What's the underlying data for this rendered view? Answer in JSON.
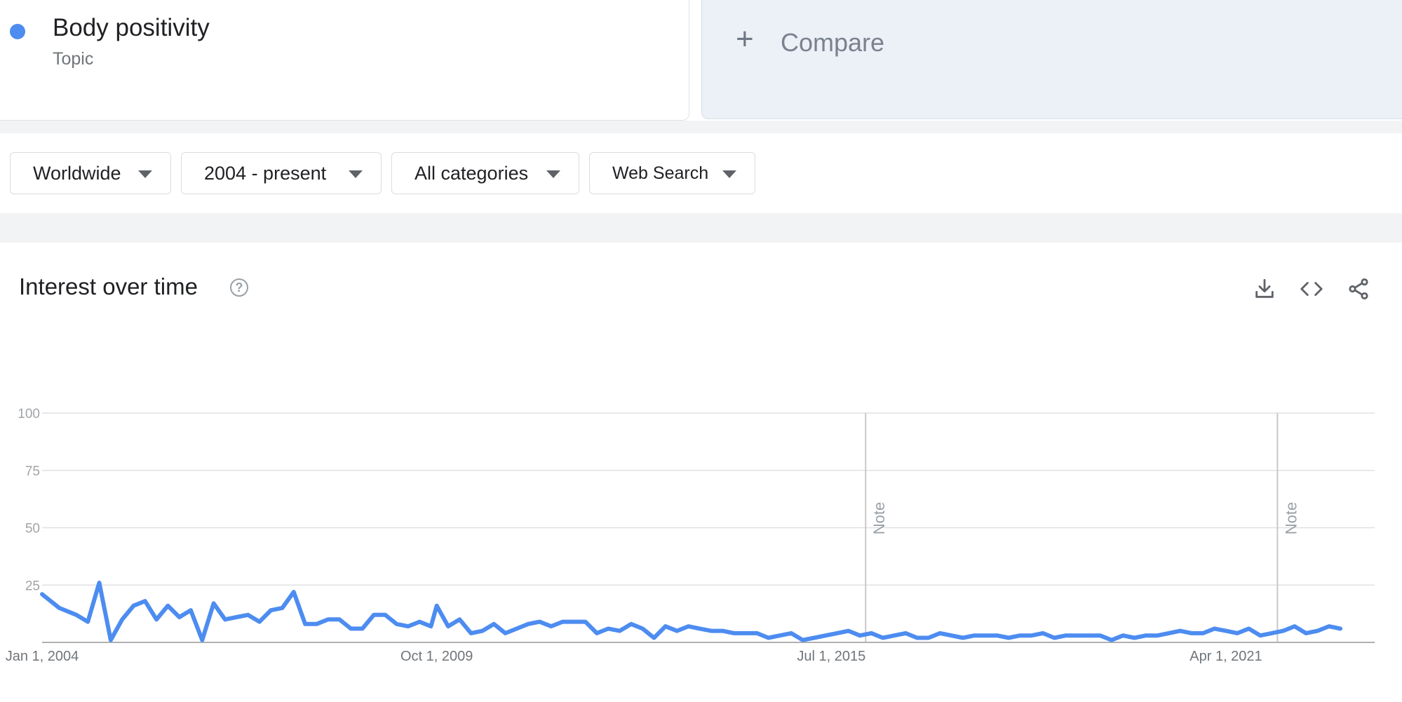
{
  "search_term": {
    "name": "Body positivity",
    "type": "Topic",
    "color": "#4d8cf0"
  },
  "compare": {
    "icon": "plus-icon",
    "label": "Compare"
  },
  "filters": [
    {
      "label": "Worldwide"
    },
    {
      "label": "2004 - present"
    },
    {
      "label": "All categories"
    },
    {
      "label": "Web Search"
    }
  ],
  "chart_header": {
    "title": "Interest over time",
    "help_icon": "?",
    "tools": [
      "download-icon",
      "embed-code-icon",
      "share-icon"
    ]
  },
  "chart_data": {
    "type": "line",
    "title": "Interest over time",
    "xlabel": "",
    "ylabel": "",
    "x_range": [
      "2004-01",
      "2023-06"
    ],
    "ylim": [
      0,
      100
    ],
    "yticks": [
      25,
      50,
      75,
      100
    ],
    "y_tick_labels": [
      "25",
      "50",
      "75",
      "100"
    ],
    "x_tick_labels": [
      {
        "date": "2004-01",
        "label": "Jan 1, 2004"
      },
      {
        "date": "2009-10",
        "label": "Oct 1, 2009"
      },
      {
        "date": "2015-07",
        "label": "Jul 1, 2015"
      },
      {
        "date": "2021-04",
        "label": "Apr 1, 2021"
      }
    ],
    "notes": [
      {
        "date": "2016-01",
        "label": "Note"
      },
      {
        "date": "2022-01",
        "label": "Note"
      }
    ],
    "series": [
      {
        "color": "#4d8cf0",
        "points": [
          [
            "2004-01",
            21
          ],
          [
            "2004-04",
            15
          ],
          [
            "2004-07",
            12
          ],
          [
            "2004-09",
            9
          ],
          [
            "2004-11",
            26
          ],
          [
            "2005-01",
            1
          ],
          [
            "2005-03",
            10
          ],
          [
            "2005-05",
            16
          ],
          [
            "2005-07",
            18
          ],
          [
            "2005-09",
            10
          ],
          [
            "2005-11",
            16
          ],
          [
            "2006-01",
            11
          ],
          [
            "2006-03",
            14
          ],
          [
            "2006-05",
            1
          ],
          [
            "2006-07",
            17
          ],
          [
            "2006-09",
            10
          ],
          [
            "2006-11",
            11
          ],
          [
            "2007-01",
            12
          ],
          [
            "2007-03",
            9
          ],
          [
            "2007-05",
            14
          ],
          [
            "2007-07",
            15
          ],
          [
            "2007-09",
            22
          ],
          [
            "2007-11",
            8
          ],
          [
            "2008-01",
            8
          ],
          [
            "2008-03",
            10
          ],
          [
            "2008-05",
            10
          ],
          [
            "2008-07",
            6
          ],
          [
            "2008-09",
            6
          ],
          [
            "2008-11",
            12
          ],
          [
            "2009-01",
            12
          ],
          [
            "2009-03",
            8
          ],
          [
            "2009-05",
            7
          ],
          [
            "2009-07",
            9
          ],
          [
            "2009-09",
            7
          ],
          [
            "2009-10",
            16
          ],
          [
            "2009-12",
            7
          ],
          [
            "2010-02",
            10
          ],
          [
            "2010-04",
            4
          ],
          [
            "2010-06",
            5
          ],
          [
            "2010-08",
            8
          ],
          [
            "2010-10",
            4
          ],
          [
            "2010-12",
            6
          ],
          [
            "2011-02",
            8
          ],
          [
            "2011-04",
            9
          ],
          [
            "2011-06",
            7
          ],
          [
            "2011-08",
            9
          ],
          [
            "2011-10",
            9
          ],
          [
            "2011-12",
            9
          ],
          [
            "2012-02",
            4
          ],
          [
            "2012-04",
            6
          ],
          [
            "2012-06",
            5
          ],
          [
            "2012-08",
            8
          ],
          [
            "2012-10",
            6
          ],
          [
            "2012-12",
            2
          ],
          [
            "2013-02",
            7
          ],
          [
            "2013-04",
            5
          ],
          [
            "2013-06",
            7
          ],
          [
            "2013-08",
            6
          ],
          [
            "2013-10",
            5
          ],
          [
            "2013-12",
            5
          ],
          [
            "2014-02",
            4
          ],
          [
            "2014-04",
            4
          ],
          [
            "2014-06",
            4
          ],
          [
            "2014-08",
            2
          ],
          [
            "2014-10",
            3
          ],
          [
            "2014-12",
            4
          ],
          [
            "2015-02",
            1
          ],
          [
            "2015-04",
            2
          ],
          [
            "2015-06",
            3
          ],
          [
            "2015-08",
            4
          ],
          [
            "2015-10",
            5
          ],
          [
            "2015-12",
            3
          ],
          [
            "2016-02",
            4
          ],
          [
            "2016-04",
            2
          ],
          [
            "2016-06",
            3
          ],
          [
            "2016-08",
            4
          ],
          [
            "2016-10",
            2
          ],
          [
            "2016-12",
            2
          ],
          [
            "2017-02",
            4
          ],
          [
            "2017-04",
            3
          ],
          [
            "2017-06",
            2
          ],
          [
            "2017-08",
            3
          ],
          [
            "2017-10",
            3
          ],
          [
            "2017-12",
            3
          ],
          [
            "2018-02",
            2
          ],
          [
            "2018-04",
            3
          ],
          [
            "2018-06",
            3
          ],
          [
            "2018-08",
            4
          ],
          [
            "2018-10",
            2
          ],
          [
            "2018-12",
            3
          ],
          [
            "2019-02",
            3
          ],
          [
            "2019-04",
            3
          ],
          [
            "2019-06",
            3
          ],
          [
            "2019-08",
            1
          ],
          [
            "2019-10",
            3
          ],
          [
            "2019-12",
            2
          ],
          [
            "2020-02",
            3
          ],
          [
            "2020-04",
            3
          ],
          [
            "2020-06",
            4
          ],
          [
            "2020-08",
            5
          ],
          [
            "2020-10",
            4
          ],
          [
            "2020-12",
            4
          ],
          [
            "2021-02",
            6
          ],
          [
            "2021-04",
            5
          ],
          [
            "2021-06",
            4
          ],
          [
            "2021-08",
            6
          ],
          [
            "2021-10",
            3
          ],
          [
            "2021-12",
            4
          ],
          [
            "2022-02",
            5
          ],
          [
            "2022-04",
            7
          ],
          [
            "2022-06",
            4
          ],
          [
            "2022-08",
            5
          ],
          [
            "2022-10",
            7
          ],
          [
            "2022-12",
            6
          ]
        ]
      }
    ]
  }
}
